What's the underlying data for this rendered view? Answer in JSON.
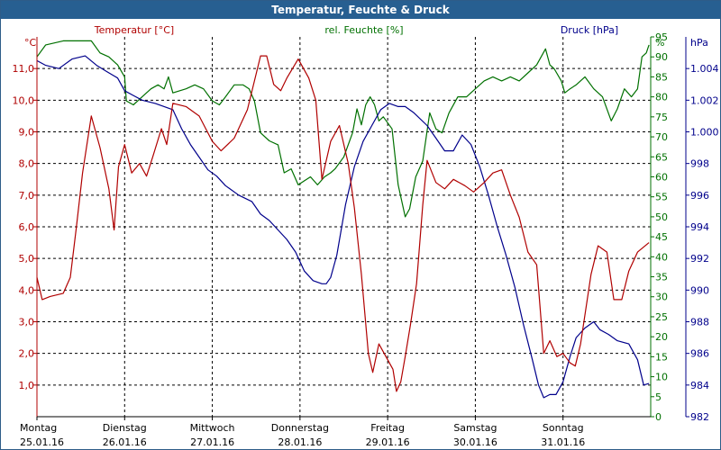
{
  "title": "Temperatur, Feuchte & Druck",
  "colors": {
    "temperature": "#b00000",
    "humidity": "#007000",
    "pressure": "#00008b",
    "title_bg": "#275f91"
  },
  "chart_data": {
    "type": "line",
    "title": "Temperatur, Feuchte & Druck",
    "grid": true,
    "x_start": "25.01.16 00:00",
    "x_end": "01.02.16 00:00",
    "x_categories": [
      {
        "day": "Montag",
        "date": "25.01.16"
      },
      {
        "day": "Dienstag",
        "date": "26.01.16"
      },
      {
        "day": "Mittwoch",
        "date": "27.01.16"
      },
      {
        "day": "Donnerstag",
        "date": "28.01.16"
      },
      {
        "day": "Freitag",
        "date": "29.01.16"
      },
      {
        "day": "Samstag",
        "date": "30.01.16"
      },
      {
        "day": "Sonntag",
        "date": "31.01.16"
      }
    ],
    "axes": {
      "temperature": {
        "label": "Temperatur [°C]",
        "unit": "°C",
        "min": 0,
        "max": 12,
        "ticks": [
          "1,0",
          "2,0",
          "3,0",
          "4,0",
          "5,0",
          "6,0",
          "7,0",
          "8,0",
          "9,0",
          "10,0",
          "11,0"
        ]
      },
      "humidity": {
        "label": "rel. Feuchte [%]",
        "unit": "%",
        "min": 0,
        "max": 95,
        "ticks": [
          "0",
          "5",
          "10",
          "15",
          "20",
          "25",
          "30",
          "35",
          "40",
          "45",
          "50",
          "55",
          "60",
          "65",
          "70",
          "75",
          "80",
          "85",
          "90",
          "95"
        ]
      },
      "pressure": {
        "label": "Druck [hPa]",
        "unit": "hPa",
        "min": 982,
        "max": 1006,
        "ticks": [
          "982",
          "984",
          "986",
          "988",
          "990",
          "992",
          "994",
          "996",
          "998",
          "1.000",
          "1.002",
          "1.004"
        ]
      }
    },
    "series": [
      {
        "name": "Temperatur [°C]",
        "axis": "temperature",
        "points": [
          [
            0,
            4.4
          ],
          [
            0.06,
            3.7
          ],
          [
            0.15,
            3.8
          ],
          [
            0.3,
            3.9
          ],
          [
            0.38,
            4.4
          ],
          [
            0.45,
            6.0
          ],
          [
            0.52,
            7.7
          ],
          [
            0.62,
            9.5
          ],
          [
            0.72,
            8.5
          ],
          [
            0.82,
            7.2
          ],
          [
            0.88,
            5.9
          ],
          [
            0.93,
            7.9
          ],
          [
            1.0,
            8.6
          ],
          [
            1.08,
            7.7
          ],
          [
            1.17,
            8.0
          ],
          [
            1.25,
            7.6
          ],
          [
            1.32,
            8.2
          ],
          [
            1.42,
            9.1
          ],
          [
            1.48,
            8.6
          ],
          [
            1.55,
            9.9
          ],
          [
            1.7,
            9.8
          ],
          [
            1.85,
            9.5
          ],
          [
            2.0,
            8.7
          ],
          [
            2.1,
            8.4
          ],
          [
            2.25,
            8.8
          ],
          [
            2.4,
            9.7
          ],
          [
            2.55,
            11.4
          ],
          [
            2.62,
            11.4
          ],
          [
            2.7,
            10.5
          ],
          [
            2.78,
            10.3
          ],
          [
            2.85,
            10.7
          ],
          [
            2.98,
            11.3
          ],
          [
            3.1,
            10.7
          ],
          [
            3.18,
            10.0
          ],
          [
            3.25,
            7.5
          ],
          [
            3.35,
            8.7
          ],
          [
            3.45,
            9.2
          ],
          [
            3.55,
            8.0
          ],
          [
            3.62,
            6.6
          ],
          [
            3.7,
            4.5
          ],
          [
            3.78,
            2.0
          ],
          [
            3.83,
            1.4
          ],
          [
            3.9,
            2.3
          ],
          [
            3.98,
            1.9
          ],
          [
            4.06,
            1.5
          ],
          [
            4.1,
            0.8
          ],
          [
            4.15,
            1.1
          ],
          [
            4.2,
            1.9
          ],
          [
            4.26,
            2.9
          ],
          [
            4.33,
            4.2
          ],
          [
            4.4,
            6.7
          ],
          [
            4.45,
            8.1
          ],
          [
            4.55,
            7.4
          ],
          [
            4.65,
            7.2
          ],
          [
            4.75,
            7.5
          ],
          [
            4.88,
            7.3
          ],
          [
            4.98,
            7.1
          ],
          [
            5.1,
            7.4
          ],
          [
            5.2,
            7.7
          ],
          [
            5.3,
            7.8
          ],
          [
            5.4,
            7.0
          ],
          [
            5.5,
            6.3
          ],
          [
            5.6,
            5.2
          ],
          [
            5.7,
            4.8
          ],
          [
            5.78,
            2.0
          ],
          [
            5.85,
            2.4
          ],
          [
            5.93,
            1.9
          ],
          [
            6.0,
            2.0
          ],
          [
            6.08,
            1.7
          ],
          [
            6.14,
            1.6
          ],
          [
            6.2,
            2.3
          ],
          [
            6.32,
            4.5
          ],
          [
            6.4,
            5.4
          ],
          [
            6.5,
            5.2
          ],
          [
            6.58,
            3.7
          ],
          [
            6.67,
            3.7
          ],
          [
            6.75,
            4.6
          ],
          [
            6.85,
            5.2
          ],
          [
            6.98,
            5.5
          ]
        ]
      },
      {
        "name": "rel. Feuchte [%]",
        "axis": "humidity",
        "points": [
          [
            0,
            90
          ],
          [
            0.1,
            93
          ],
          [
            0.3,
            94
          ],
          [
            0.45,
            94
          ],
          [
            0.62,
            94
          ],
          [
            0.72,
            91
          ],
          [
            0.82,
            90
          ],
          [
            0.92,
            88
          ],
          [
            1.0,
            85
          ],
          [
            1.02,
            79
          ],
          [
            1.1,
            78
          ],
          [
            1.2,
            80
          ],
          [
            1.3,
            82
          ],
          [
            1.38,
            83
          ],
          [
            1.45,
            82
          ],
          [
            1.5,
            85
          ],
          [
            1.55,
            81
          ],
          [
            1.7,
            82
          ],
          [
            1.8,
            83
          ],
          [
            1.9,
            82
          ],
          [
            2.0,
            79
          ],
          [
            2.08,
            78
          ],
          [
            2.15,
            80
          ],
          [
            2.25,
            83
          ],
          [
            2.35,
            83
          ],
          [
            2.42,
            82
          ],
          [
            2.48,
            79
          ],
          [
            2.55,
            71
          ],
          [
            2.65,
            69
          ],
          [
            2.75,
            68
          ],
          [
            2.82,
            61
          ],
          [
            2.9,
            62
          ],
          [
            2.98,
            58
          ],
          [
            3.05,
            59
          ],
          [
            3.12,
            60
          ],
          [
            3.2,
            58
          ],
          [
            3.28,
            60
          ],
          [
            3.35,
            61
          ],
          [
            3.4,
            62
          ],
          [
            3.5,
            65
          ],
          [
            3.6,
            71
          ],
          [
            3.65,
            77
          ],
          [
            3.7,
            73
          ],
          [
            3.75,
            78
          ],
          [
            3.8,
            80
          ],
          [
            3.85,
            78
          ],
          [
            3.9,
            74
          ],
          [
            3.95,
            75
          ],
          [
            4.05,
            72
          ],
          [
            4.12,
            58
          ],
          [
            4.2,
            50
          ],
          [
            4.25,
            52
          ],
          [
            4.32,
            60
          ],
          [
            4.4,
            64
          ],
          [
            4.48,
            76
          ],
          [
            4.55,
            72
          ],
          [
            4.62,
            71
          ],
          [
            4.7,
            76
          ],
          [
            4.8,
            80
          ],
          [
            4.9,
            80
          ],
          [
            5.0,
            82
          ],
          [
            5.1,
            84
          ],
          [
            5.2,
            85
          ],
          [
            5.3,
            84
          ],
          [
            5.4,
            85
          ],
          [
            5.5,
            84
          ],
          [
            5.6,
            86
          ],
          [
            5.7,
            88
          ],
          [
            5.8,
            92
          ],
          [
            5.85,
            88
          ],
          [
            5.9,
            87
          ],
          [
            5.98,
            84
          ],
          [
            6.02,
            81
          ],
          [
            6.08,
            82
          ],
          [
            6.15,
            83
          ],
          [
            6.25,
            85
          ],
          [
            6.35,
            82
          ],
          [
            6.45,
            80
          ],
          [
            6.55,
            74
          ],
          [
            6.62,
            77
          ],
          [
            6.7,
            82
          ],
          [
            6.78,
            80
          ],
          [
            6.85,
            82
          ],
          [
            6.9,
            90
          ],
          [
            6.95,
            91
          ],
          [
            6.98,
            93
          ]
        ]
      },
      {
        "name": "Druck [hPa]",
        "axis": "pressure",
        "points": [
          [
            0,
            1004.5
          ],
          [
            0.1,
            1004.2
          ],
          [
            0.25,
            1004.0
          ],
          [
            0.4,
            1004.6
          ],
          [
            0.55,
            1004.8
          ],
          [
            0.68,
            1004.2
          ],
          [
            0.8,
            1003.8
          ],
          [
            0.92,
            1003.4
          ],
          [
            1.0,
            1002.6
          ],
          [
            1.1,
            1002.3
          ],
          [
            1.2,
            1002.0
          ],
          [
            1.35,
            1001.8
          ],
          [
            1.45,
            1001.6
          ],
          [
            1.55,
            1001.4
          ],
          [
            1.65,
            1000.2
          ],
          [
            1.75,
            999.2
          ],
          [
            1.85,
            998.4
          ],
          [
            1.95,
            997.6
          ],
          [
            2.05,
            997.2
          ],
          [
            2.15,
            996.6
          ],
          [
            2.3,
            996.0
          ],
          [
            2.45,
            995.6
          ],
          [
            2.55,
            994.8
          ],
          [
            2.65,
            994.4
          ],
          [
            2.75,
            993.8
          ],
          [
            2.85,
            993.2
          ],
          [
            2.95,
            992.4
          ],
          [
            3.05,
            991.2
          ],
          [
            3.15,
            990.6
          ],
          [
            3.25,
            990.4
          ],
          [
            3.3,
            990.4
          ],
          [
            3.35,
            990.8
          ],
          [
            3.42,
            992.2
          ],
          [
            3.52,
            995.4
          ],
          [
            3.62,
            997.8
          ],
          [
            3.72,
            999.4
          ],
          [
            3.82,
            1000.4
          ],
          [
            3.92,
            1001.4
          ],
          [
            4.02,
            1001.8
          ],
          [
            4.12,
            1001.6
          ],
          [
            4.2,
            1001.6
          ],
          [
            4.3,
            1001.2
          ],
          [
            4.45,
            1000.4
          ],
          [
            4.55,
            999.6
          ],
          [
            4.65,
            998.8
          ],
          [
            4.75,
            998.8
          ],
          [
            4.85,
            999.8
          ],
          [
            4.95,
            999.2
          ],
          [
            5.05,
            997.8
          ],
          [
            5.15,
            996.0
          ],
          [
            5.25,
            994.0
          ],
          [
            5.35,
            992.2
          ],
          [
            5.45,
            990.2
          ],
          [
            5.55,
            987.8
          ],
          [
            5.65,
            985.6
          ],
          [
            5.72,
            984.0
          ],
          [
            5.78,
            983.2
          ],
          [
            5.85,
            983.4
          ],
          [
            5.92,
            983.4
          ],
          [
            6.0,
            984.2
          ],
          [
            6.08,
            985.8
          ],
          [
            6.15,
            987.0
          ],
          [
            6.25,
            987.6
          ],
          [
            6.35,
            988.0
          ],
          [
            6.42,
            987.5
          ],
          [
            6.52,
            987.2
          ],
          [
            6.62,
            986.8
          ],
          [
            6.75,
            986.6
          ],
          [
            6.85,
            985.6
          ],
          [
            6.92,
            984.0
          ],
          [
            6.98,
            984.1
          ]
        ]
      }
    ]
  }
}
